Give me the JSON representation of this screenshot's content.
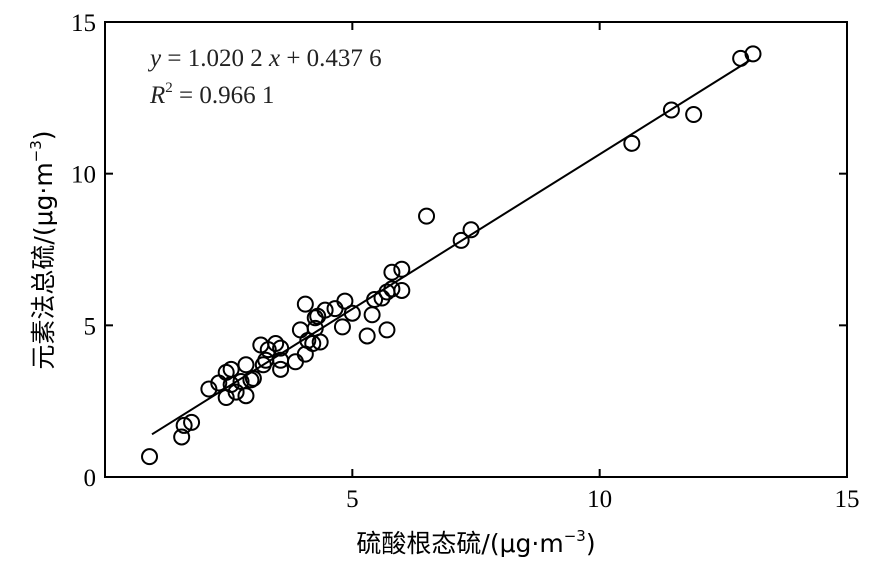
{
  "chart_data": {
    "type": "scatter",
    "title": "",
    "xlabel": "硫酸根态硫/(μg·m",
    "ylabel": "元素法总硫/(μg·m",
    "unit_exponent": "−3",
    "unit_close": ")",
    "xlim": [
      0,
      15
    ],
    "ylim": [
      0,
      15
    ],
    "x_ticks": [
      0,
      5,
      10,
      15
    ],
    "y_ticks": [
      0,
      5,
      10,
      15
    ],
    "x_tick_labels": [
      "5",
      "10",
      "15"
    ],
    "y_tick_labels": [
      "0",
      "5",
      "10",
      "15"
    ],
    "grid": false,
    "marker": "open-circle",
    "points": [
      [
        0.9,
        0.67
      ],
      [
        1.55,
        1.32
      ],
      [
        1.6,
        1.7
      ],
      [
        1.75,
        1.8
      ],
      [
        2.1,
        2.9
      ],
      [
        2.3,
        3.1
      ],
      [
        2.45,
        3.45
      ],
      [
        2.45,
        2.62
      ],
      [
        2.55,
        3.55
      ],
      [
        2.55,
        3.05
      ],
      [
        2.65,
        2.8
      ],
      [
        2.75,
        3.15
      ],
      [
        2.85,
        3.7
      ],
      [
        2.85,
        2.68
      ],
      [
        2.95,
        3.2
      ],
      [
        3.0,
        3.25
      ],
      [
        3.15,
        4.35
      ],
      [
        3.2,
        3.7
      ],
      [
        3.25,
        3.85
      ],
      [
        3.3,
        4.2
      ],
      [
        3.45,
        4.4
      ],
      [
        3.55,
        4.25
      ],
      [
        3.55,
        3.55
      ],
      [
        3.55,
        3.85
      ],
      [
        3.85,
        3.8
      ],
      [
        3.95,
        4.85
      ],
      [
        4.05,
        4.05
      ],
      [
        4.05,
        5.7
      ],
      [
        4.1,
        4.5
      ],
      [
        4.2,
        4.4
      ],
      [
        4.25,
        4.9
      ],
      [
        4.25,
        5.25
      ],
      [
        4.3,
        5.3
      ],
      [
        4.35,
        4.45
      ],
      [
        4.45,
        5.5
      ],
      [
        4.65,
        5.55
      ],
      [
        4.8,
        4.95
      ],
      [
        4.85,
        5.8
      ],
      [
        5.0,
        5.4
      ],
      [
        5.3,
        4.65
      ],
      [
        5.4,
        5.35
      ],
      [
        5.45,
        5.85
      ],
      [
        5.6,
        5.9
      ],
      [
        5.7,
        4.85
      ],
      [
        5.7,
        6.1
      ],
      [
        5.8,
        6.2
      ],
      [
        5.8,
        6.75
      ],
      [
        6.0,
        6.85
      ],
      [
        6.0,
        6.15
      ],
      [
        6.5,
        8.6
      ],
      [
        7.2,
        7.8
      ],
      [
        7.4,
        8.15
      ],
      [
        10.65,
        11.0
      ],
      [
        11.45,
        12.1
      ],
      [
        11.9,
        11.95
      ],
      [
        12.85,
        13.8
      ],
      [
        13.1,
        13.95
      ]
    ],
    "fit_line": {
      "slope": 1.0202,
      "intercept": 0.4376,
      "x_range": [
        0.95,
        13.05
      ],
      "equation_parts": [
        "y",
        " = 1.020 2 ",
        "x",
        " + 0.437 6"
      ],
      "r2_parts": [
        "R",
        "2",
        " = 0.966 1"
      ]
    },
    "colors": {
      "marker": "#000000",
      "line": "#000000",
      "axis": "#000000"
    }
  }
}
